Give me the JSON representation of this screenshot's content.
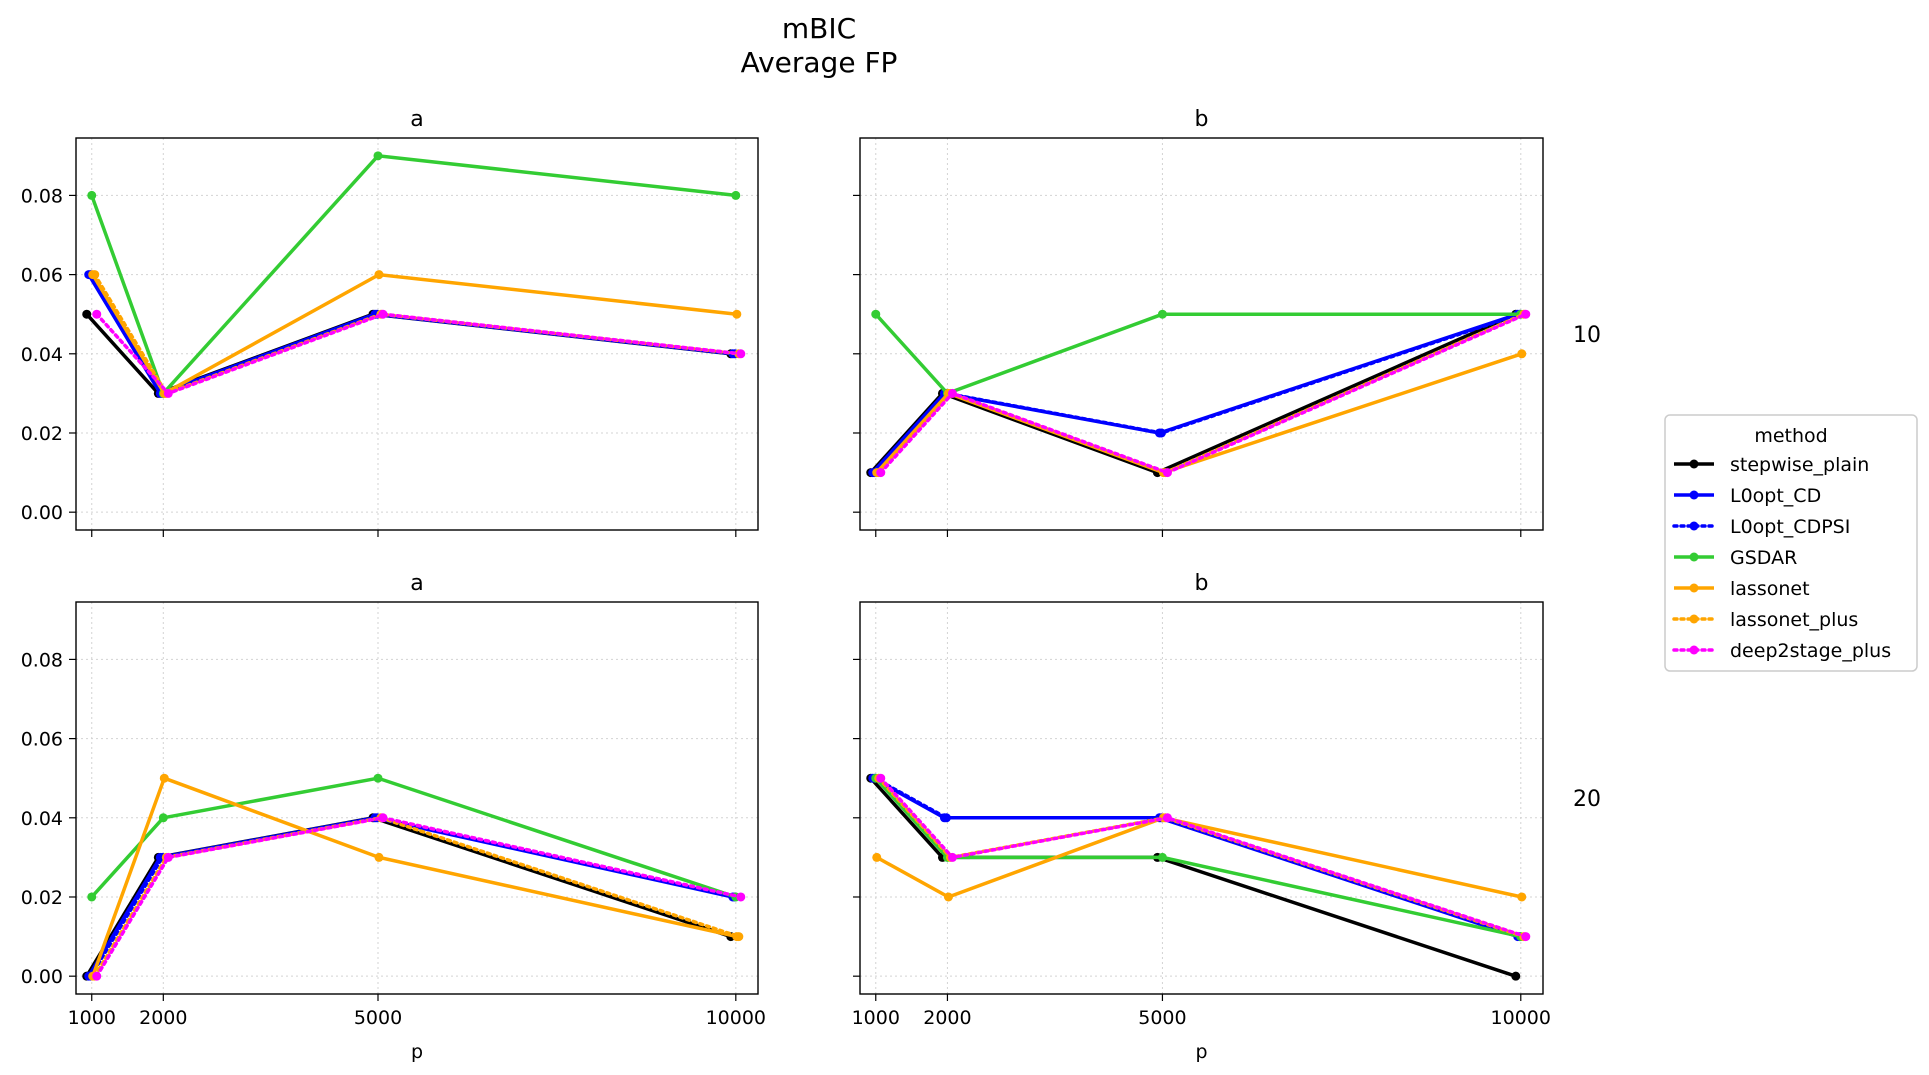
{
  "title_line1": "mBIC",
  "title_line2": "Average FP",
  "x_label": "p",
  "row_labels": [
    "10",
    "20"
  ],
  "legend_title": "method",
  "chart_data": {
    "type": "line",
    "x": [
      1000,
      2000,
      5000,
      10000
    ],
    "x_ticks": [
      "1000",
      "2000",
      "5000",
      "10000"
    ],
    "ylim": [
      -0.0045,
      0.0945
    ],
    "y_ticks": [
      "0.00",
      "0.02",
      "0.04",
      "0.06",
      "0.08"
    ],
    "y_tick_values": [
      0,
      0.02,
      0.04,
      0.06,
      0.08
    ],
    "grid": true,
    "legend_position": "right",
    "methods": [
      {
        "name": "stepwise_plain",
        "color": "#000000",
        "style": "solid"
      },
      {
        "name": "L0opt_CD",
        "color": "#0000ff",
        "style": "solid"
      },
      {
        "name": "L0opt_CDPSI",
        "color": "#0000ff",
        "style": "dotted"
      },
      {
        "name": "GSDAR",
        "color": "#33cc33",
        "style": "solid"
      },
      {
        "name": "lassonet",
        "color": "#ffa500",
        "style": "solid"
      },
      {
        "name": "lassonet_plus",
        "color": "#ffa500",
        "style": "dotted"
      },
      {
        "name": "deep2stage_plus",
        "color": "#ff00ff",
        "style": "dotted"
      }
    ],
    "panels": [
      {
        "title": "a",
        "row": "10",
        "series": {
          "stepwise_plain": [
            0.05,
            0.03,
            0.05,
            0.04
          ],
          "L0opt_CD": [
            0.06,
            0.03,
            0.05,
            0.04
          ],
          "L0opt_CDPSI": [
            0.06,
            0.03,
            0.05,
            0.04
          ],
          "GSDAR": [
            0.08,
            0.03,
            0.09,
            0.08
          ],
          "lassonet": [
            0.06,
            0.03,
            0.06,
            0.05
          ],
          "lassonet_plus": [
            0.06,
            0.03,
            0.05,
            0.04
          ],
          "deep2stage_plus": [
            0.05,
            0.03,
            0.05,
            0.04
          ]
        }
      },
      {
        "title": "b",
        "row": "10",
        "series": {
          "stepwise_plain": [
            0.01,
            0.03,
            0.01,
            0.05
          ],
          "L0opt_CD": [
            0.01,
            0.03,
            0.02,
            0.05
          ],
          "L0opt_CDPSI": [
            0.01,
            0.03,
            0.02,
            0.05
          ],
          "GSDAR": [
            0.05,
            0.03,
            0.05,
            0.05
          ],
          "lassonet": [
            0.01,
            0.03,
            0.01,
            0.04
          ],
          "lassonet_plus": [
            0.01,
            0.03,
            0.01,
            0.05
          ],
          "deep2stage_plus": [
            0.01,
            0.03,
            0.01,
            0.05
          ]
        }
      },
      {
        "title": "a",
        "row": "20",
        "series": {
          "stepwise_plain": [
            0.0,
            0.03,
            0.04,
            0.01
          ],
          "L0opt_CD": [
            0.0,
            0.03,
            0.04,
            0.02
          ],
          "L0opt_CDPSI": [
            0.0,
            0.03,
            0.04,
            0.02
          ],
          "GSDAR": [
            0.02,
            0.04,
            0.05,
            0.02
          ],
          "lassonet": [
            0.0,
            0.05,
            0.03,
            0.01
          ],
          "lassonet_plus": [
            0.0,
            0.03,
            0.04,
            0.01
          ],
          "deep2stage_plus": [
            0.0,
            0.03,
            0.04,
            0.02
          ]
        }
      },
      {
        "title": "b",
        "row": "20",
        "series": {
          "stepwise_plain": [
            0.05,
            0.03,
            0.03,
            0.0
          ],
          "L0opt_CD": [
            0.05,
            0.04,
            0.04,
            0.01
          ],
          "L0opt_CDPSI": [
            0.05,
            0.04,
            0.04,
            0.01
          ],
          "GSDAR": [
            0.05,
            0.03,
            0.03,
            0.01
          ],
          "lassonet": [
            0.03,
            0.02,
            0.04,
            0.02
          ],
          "lassonet_plus": [
            0.05,
            0.03,
            0.04,
            0.01
          ],
          "deep2stage_plus": [
            0.05,
            0.03,
            0.04,
            0.01
          ]
        }
      }
    ]
  }
}
